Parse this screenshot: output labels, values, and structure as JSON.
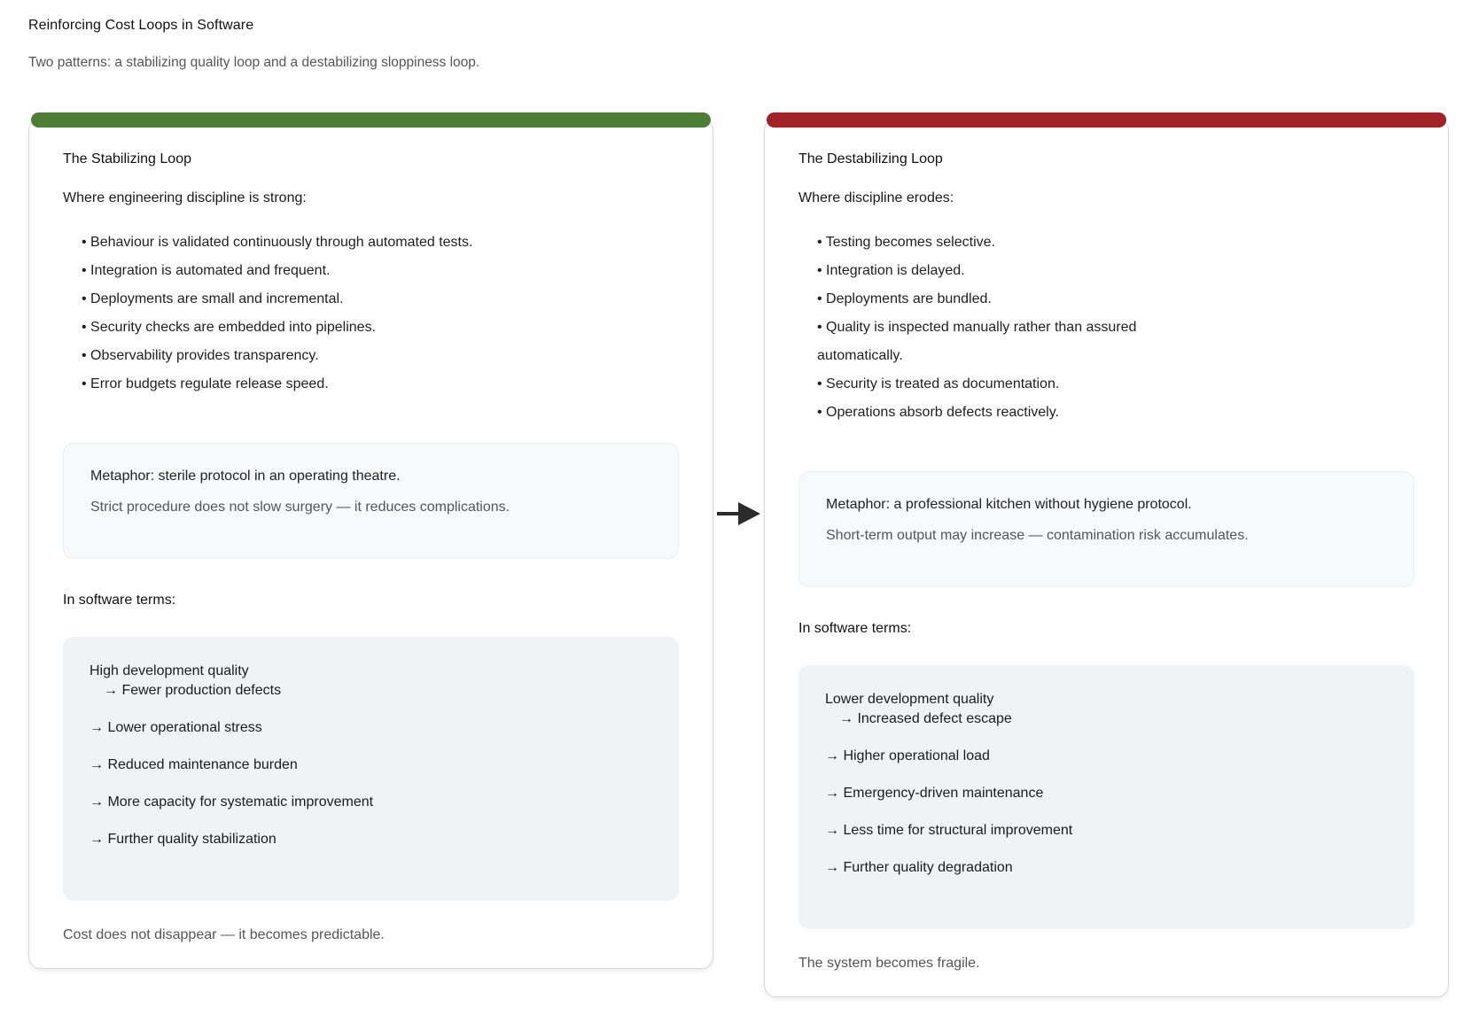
{
  "page": {
    "title": "Reinforcing Cost Loops in Software",
    "subtitle": "Two patterns: a stabilizing quality loop and a destabilizing sloppiness loop."
  },
  "colors": {
    "stabilizing_accent": "#4e7e36",
    "destabilizing_accent": "#a32227",
    "arrow": "#2b2b2b"
  },
  "cards": [
    {
      "id": "stabilizing",
      "accent": "#4e7e36",
      "heading": "The Stabilizing Loop",
      "intro": "Where engineering discipline is strong:",
      "bullets": [
        "• Behaviour is validated continuously through automated tests.",
        "• Integration is automated and frequent.",
        "• Deployments are small and incremental.",
        "• Security checks are embedded into pipelines.",
        "• Observability provides transparency.",
        "• Error budgets regulate release speed."
      ],
      "metaphor": {
        "line1": "Metaphor: sterile protocol in an operating theatre.",
        "line2": "Strict procedure does not slow surgery — it reduces complications."
      },
      "software_terms_label": "In software terms:",
      "chain": {
        "first_line": "High development quality",
        "first_sub": "→ Fewer production defects",
        "steps": [
          "→ Lower operational stress",
          "→ Reduced maintenance burden",
          "→ More capacity for systematic improvement",
          "→ Further quality stabilization"
        ]
      },
      "footer": "Cost does not disappear — it becomes predictable."
    },
    {
      "id": "destabilizing",
      "accent": "#a32227",
      "heading": "The Destabilizing Loop",
      "intro": "Where discipline erodes:",
      "bullets": [
        "• Testing becomes selective.",
        "• Integration is delayed.",
        "• Deployments are bundled.",
        "• Quality is inspected manually rather than assured\nautomatically.",
        "• Security is treated as documentation.",
        "• Operations absorb defects reactively."
      ],
      "metaphor": {
        "line1": "Metaphor: a professional kitchen without hygiene protocol.",
        "line2": "Short-term output may increase — contamination risk accumulates."
      },
      "software_terms_label": "In software terms:",
      "chain": {
        "first_line": "Lower development quality",
        "first_sub": "→ Increased defect escape",
        "steps": [
          "→ Higher operational load",
          "→ Emergency-driven maintenance",
          "→ Less time for structural improvement",
          "→ Further quality degradation"
        ]
      },
      "footer": "The system becomes fragile."
    }
  ]
}
